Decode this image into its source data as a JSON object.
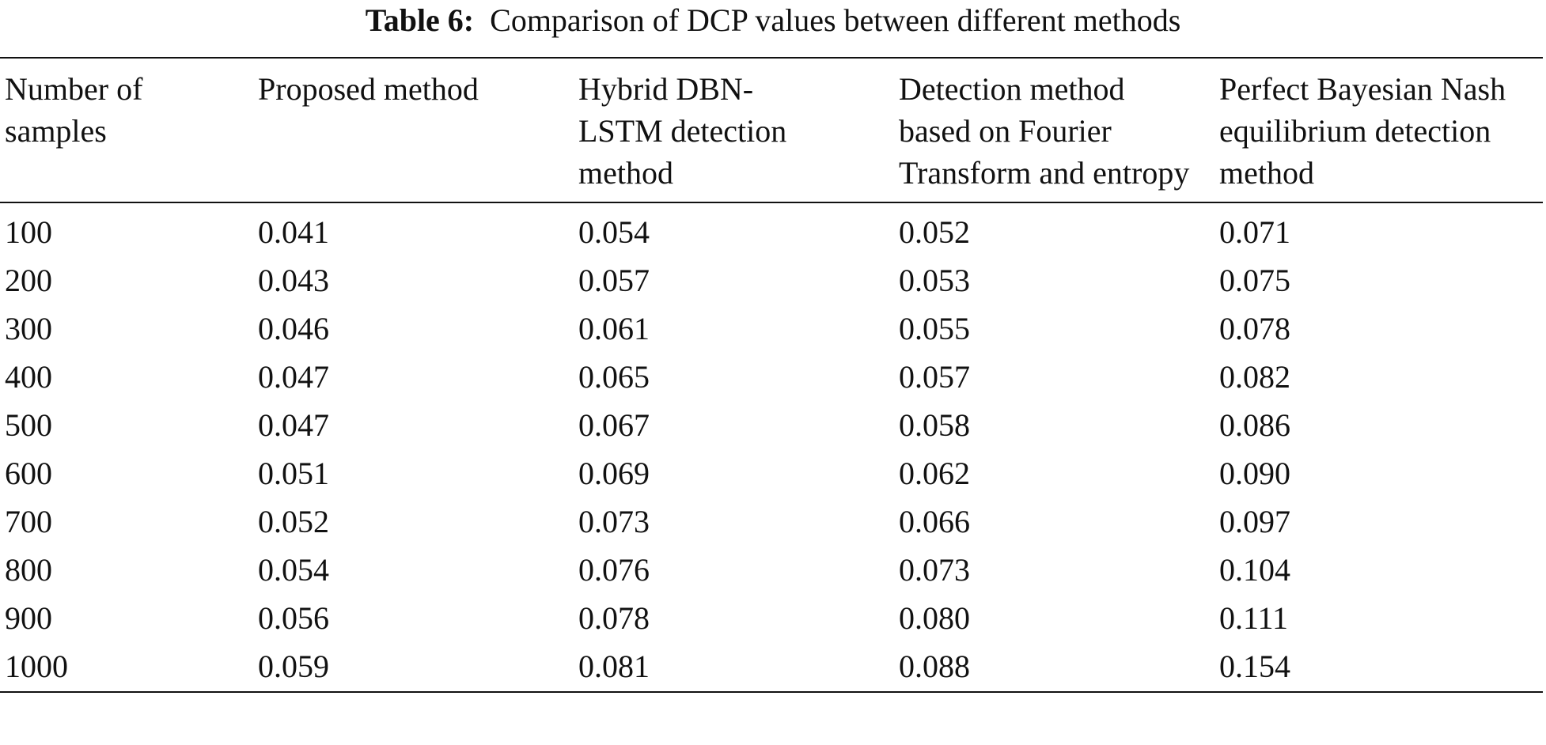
{
  "caption": {
    "label": "Table 6:",
    "text": "Comparison of DCP values between different methods"
  },
  "table": {
    "headers": [
      "Number of samples",
      "Proposed method",
      "Hybrid DBN-LSTM detection method",
      "Detection method based on Fourier Transform and entropy",
      "Perfect Bayesian Nash equilibrium detection method"
    ],
    "rows": [
      [
        "100",
        "0.041",
        "0.054",
        "0.052",
        "0.071"
      ],
      [
        "200",
        "0.043",
        "0.057",
        "0.053",
        "0.075"
      ],
      [
        "300",
        "0.046",
        "0.061",
        "0.055",
        "0.078"
      ],
      [
        "400",
        "0.047",
        "0.065",
        "0.057",
        "0.082"
      ],
      [
        "500",
        "0.047",
        "0.067",
        "0.058",
        "0.086"
      ],
      [
        "600",
        "0.051",
        "0.069",
        "0.062",
        "0.090"
      ],
      [
        "700",
        "0.052",
        "0.073",
        "0.066",
        "0.097"
      ],
      [
        "800",
        "0.054",
        "0.076",
        "0.073",
        "0.104"
      ],
      [
        "900",
        "0.056",
        "0.078",
        "0.080",
        "0.111"
      ],
      [
        "1000",
        "0.059",
        "0.081",
        "0.088",
        "0.154"
      ]
    ]
  }
}
